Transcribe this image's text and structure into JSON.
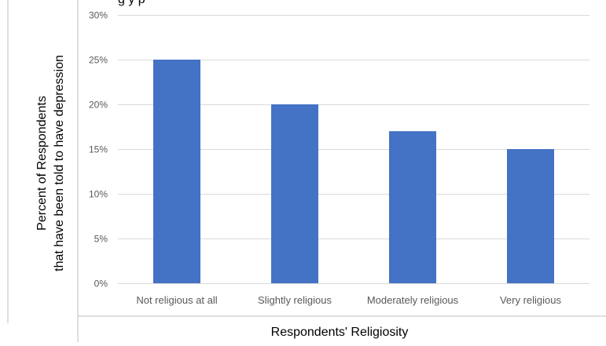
{
  "top_text_fragment": "g y    p",
  "chart_data": {
    "type": "bar",
    "title": "",
    "categories": [
      "Not religious at all",
      "Slightly religious",
      "Moderately religious",
      "Very religious"
    ],
    "series": [
      {
        "values": [
          0.25,
          0.2,
          0.17,
          0.15
        ],
        "color": "#4472C4"
      }
    ],
    "xlabel": "Respondents' Religiosity",
    "ylabel_lines": [
      "Percent of Respondents",
      "that have been told to have depression"
    ],
    "ylim": [
      0,
      0.3
    ],
    "yticks": [
      "0%",
      "5%",
      "10%",
      "15%",
      "20%",
      "25%",
      "30%"
    ],
    "ytick_values": [
      0,
      0.05,
      0.1,
      0.15,
      0.2,
      0.25,
      0.3
    ],
    "grid": true,
    "legend": "none",
    "gridline_color": "#D9D9D9",
    "frame_color": "#BFBFBF"
  }
}
